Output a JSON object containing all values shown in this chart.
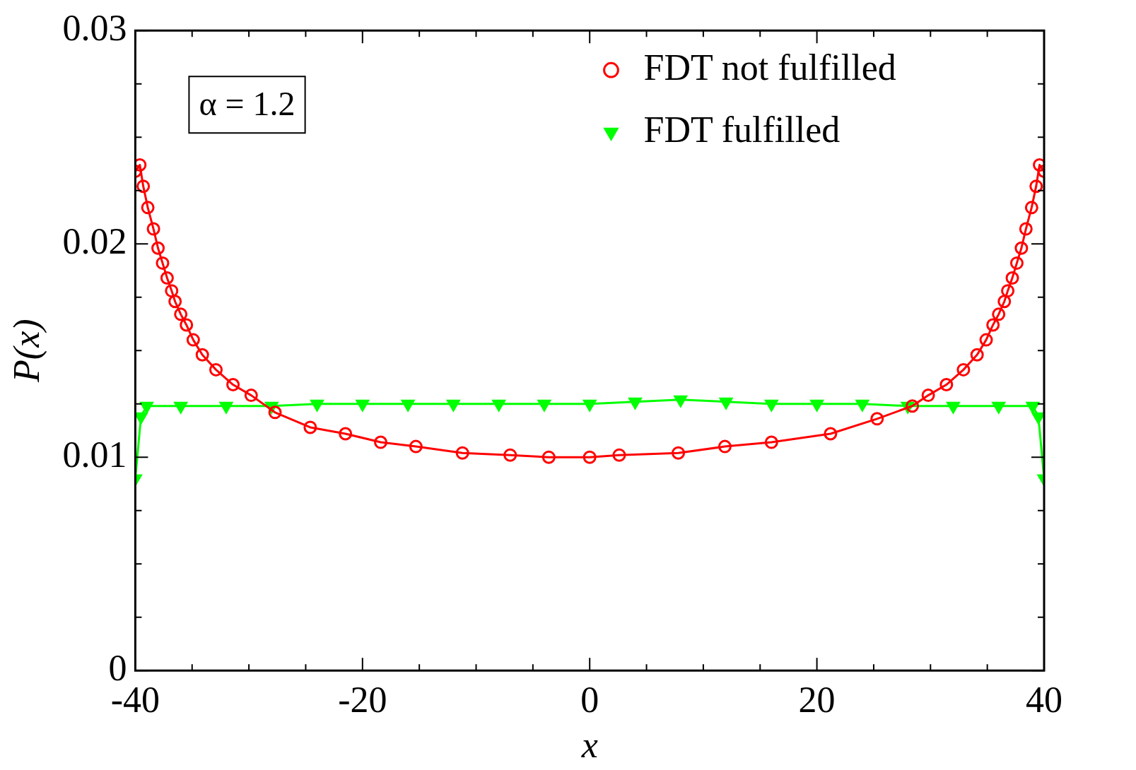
{
  "chart_data": {
    "type": "line",
    "xlabel": "x",
    "ylabel": "P(x)",
    "xlim": [
      -40,
      40
    ],
    "xticks": [
      -40,
      {
        "value": -35,
        "label": null
      },
      -20,
      {
        "value": -30,
        "label": null
      },
      {
        "value": -25,
        "label": null
      },
      {
        "value": -15,
        "label": null
      },
      {
        "value": -10,
        "label": null
      },
      {
        "value": -5,
        "label": null
      },
      0,
      {
        "value": 5,
        "label": null
      },
      {
        "value": 10,
        "label": null
      },
      {
        "value": 15,
        "label": null
      },
      20,
      {
        "value": 25,
        "label": null
      },
      {
        "value": 30,
        "label": null
      },
      {
        "value": 35,
        "label": null
      },
      40
    ],
    "ylim": [
      0,
      0.03
    ],
    "yticks": [
      0,
      {
        "value": 0.0025,
        "label": null
      },
      {
        "value": 0.005,
        "label": null
      },
      {
        "value": 0.0075,
        "label": null
      },
      0.01,
      {
        "value": 0.0125,
        "label": null
      },
      {
        "value": 0.015,
        "label": null
      },
      {
        "value": 0.0175,
        "label": null
      },
      0.02,
      {
        "value": 0.0225,
        "label": null
      },
      {
        "value": 0.025,
        "label": null
      },
      {
        "value": 0.0275,
        "label": null
      },
      0.03
    ],
    "grid": false,
    "legend": "top right",
    "line_style": "solid",
    "annotations": [
      "α = 1.2"
    ],
    "series": [
      {
        "name": "FDT not fulfilled",
        "color": "#ff0000",
        "marker": "circle",
        "x": [
          -40,
          -39.6,
          -39.3,
          -38.9,
          -38.4,
          -38,
          -37.6,
          -37.2,
          -36.8,
          -36.5,
          -36,
          -35.5,
          -34.9,
          -34.1,
          -32.9,
          -31.4,
          -29.8,
          -27.7,
          -24.6,
          -21.5,
          -18.4,
          -15.3,
          -11.2,
          -7,
          -3.6,
          0,
          2.6,
          7.8,
          11.9,
          16,
          21.2,
          25.3,
          28.4,
          29.8,
          31.4,
          32.9,
          34.1,
          34.9,
          35.5,
          36,
          36.5,
          36.8,
          37.2,
          37.6,
          38,
          38.4,
          38.9,
          39.3,
          39.6,
          40
        ],
        "values": [
          0.0234,
          0.0237,
          0.0227,
          0.0217,
          0.0207,
          0.0198,
          0.0191,
          0.0184,
          0.0178,
          0.0173,
          0.0167,
          0.0162,
          0.0155,
          0.0148,
          0.0141,
          0.0134,
          0.0129,
          0.0121,
          0.0114,
          0.0111,
          0.0107,
          0.0105,
          0.0102,
          0.0101,
          0.01,
          0.01,
          0.0101,
          0.0102,
          0.0105,
          0.0107,
          0.0111,
          0.0118,
          0.0124,
          0.0129,
          0.0134,
          0.0141,
          0.0148,
          0.0155,
          0.0162,
          0.0167,
          0.0173,
          0.0178,
          0.0184,
          0.0191,
          0.0198,
          0.0207,
          0.0217,
          0.0227,
          0.0237,
          0.0234
        ]
      },
      {
        "name": "FDT fulfilled",
        "color": "#00ff00",
        "marker": "triangle",
        "x": [
          -40,
          -39.5,
          -39,
          -36,
          -32,
          -28,
          -24,
          -20,
          -16,
          -12,
          -8,
          -4,
          0,
          4,
          8,
          12,
          16,
          20,
          24,
          28,
          32,
          36,
          39,
          39.5,
          40
        ],
        "values": [
          0.009,
          0.0119,
          0.0124,
          0.0124,
          0.0124,
          0.0124,
          0.0125,
          0.0125,
          0.0125,
          0.0125,
          0.0125,
          0.0125,
          0.0125,
          0.0126,
          0.0127,
          0.0126,
          0.0125,
          0.0125,
          0.0125,
          0.0124,
          0.0124,
          0.0124,
          0.0124,
          0.0119,
          0.009
        ]
      }
    ]
  }
}
